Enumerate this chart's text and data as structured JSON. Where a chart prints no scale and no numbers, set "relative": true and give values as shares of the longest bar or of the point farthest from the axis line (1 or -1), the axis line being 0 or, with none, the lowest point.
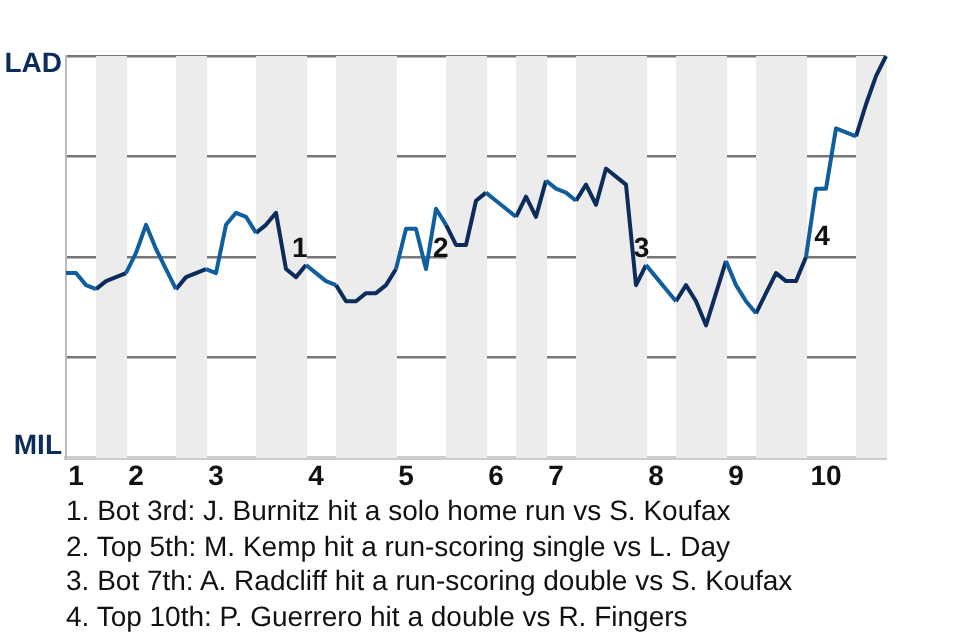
{
  "chart_data": {
    "type": "line",
    "categories": [
      null,
      "1",
      null,
      null,
      null,
      null,
      null,
      "2",
      null,
      null,
      null,
      null,
      null,
      null,
      null,
      "3",
      null,
      null,
      null,
      null,
      null,
      null,
      null,
      null,
      null,
      "4",
      null,
      null,
      null,
      null,
      null,
      null,
      null,
      null,
      "5",
      null,
      null,
      null,
      null,
      null,
      null,
      null,
      null,
      "6",
      null,
      null,
      null,
      null,
      null,
      "7",
      null,
      null,
      null,
      null,
      null,
      null,
      null,
      null,
      null,
      "8",
      null,
      null,
      null,
      null,
      null,
      null,
      null,
      "9",
      null,
      null,
      null,
      null,
      null,
      null,
      null,
      null,
      "10",
      null,
      null,
      null,
      null,
      null,
      null
    ],
    "relative": true,
    "series": [
      {
        "color": "#0f5fa0",
        "values": [
          0.46,
          0.46,
          0.43,
          0.42,
          null,
          null,
          0.46,
          0.51,
          0.58,
          0.52,
          0.47,
          0.42,
          null,
          null,
          0.47,
          0.46,
          0.58,
          0.61,
          0.6,
          0.56,
          null,
          null,
          null,
          null,
          0.48,
          0.46,
          0.44,
          0.43,
          null,
          null,
          null,
          null,
          null,
          0.47,
          0.57,
          0.57,
          0.47,
          0.62,
          0.58,
          null,
          null,
          null,
          0.66,
          0.64,
          0.62,
          0.6,
          null,
          null,
          0.69,
          0.67,
          0.66,
          0.64,
          null,
          null,
          null,
          null,
          null,
          null,
          0.48,
          0.45,
          0.42,
          0.39,
          null,
          null,
          null,
          null,
          0.49,
          0.43,
          0.39,
          0.36,
          null,
          null,
          null,
          null,
          0.5,
          0.67,
          0.67,
          0.82,
          0.81,
          0.8,
          null,
          null,
          null
        ]
      },
      {
        "color": "#0c2c5c",
        "values": [
          null,
          null,
          null,
          0.42,
          0.44,
          0.45,
          0.46,
          null,
          null,
          null,
          null,
          0.42,
          0.45,
          0.46,
          0.47,
          null,
          null,
          null,
          null,
          0.56,
          0.58,
          0.61,
          0.47,
          0.45,
          0.48,
          null,
          null,
          0.43,
          0.39,
          0.39,
          0.41,
          0.41,
          0.43,
          0.47,
          null,
          null,
          null,
          null,
          0.58,
          0.53,
          0.53,
          0.64,
          0.66,
          null,
          null,
          0.6,
          0.65,
          0.6,
          0.69,
          null,
          null,
          0.64,
          0.68,
          0.63,
          0.72,
          0.7,
          0.68,
          0.43,
          0.48,
          null,
          null,
          0.39,
          0.43,
          0.39,
          0.33,
          0.41,
          0.49,
          null,
          null,
          0.36,
          0.41,
          0.46,
          0.44,
          0.44,
          0.5,
          null,
          null,
          null,
          null,
          0.8,
          0.88,
          0.95,
          1
        ]
      }
    ],
    "grid": "y",
    "marker": "none",
    "annotations": [
      "LAD",
      "MIL",
      "1",
      "2",
      "3",
      "4",
      "1. Bot 3rd: J. Burnitz hit a solo home run vs S. Koufax",
      "2. Top 5th: M. Kemp hit a run-scoring single vs L. Day",
      "3. Bot 7th: A. Radcliff hit a run-scoring double vs S. Koufax",
      "4. Top 10th: P. Guerrero hit a double vs R. Fingers"
    ]
  }
}
